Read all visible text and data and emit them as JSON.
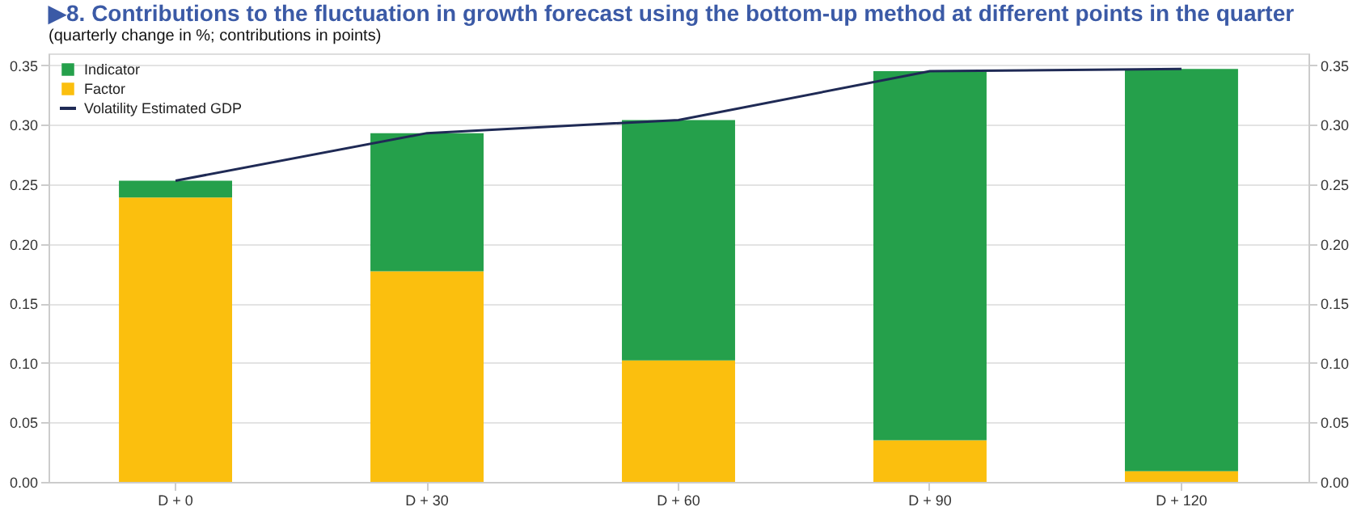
{
  "chart_data": {
    "type": "bar",
    "title": "▶8. Contributions to the fluctuation in growth forecast using the bottom-up method at different points in the quarter",
    "subtitle": "(quarterly change in %; contributions in points)",
    "categories": [
      "D + 0",
      "D + 30",
      "D + 60",
      "D + 90",
      "D + 120"
    ],
    "stacked": true,
    "series": [
      {
        "name": "Factor",
        "color": "#fbbf0e",
        "values": [
          0.239,
          0.177,
          0.102,
          0.035,
          0.009
        ]
      },
      {
        "name": "Indicator",
        "color": "#25a04b",
        "values": [
          0.014,
          0.116,
          0.202,
          0.31,
          0.338
        ]
      },
      {
        "name": "Volatility Estimated GDP",
        "type": "line",
        "color": "#1f2a55",
        "values": [
          0.253,
          0.293,
          0.304,
          0.345,
          0.347
        ]
      }
    ],
    "ylim": [
      0,
      0.36
    ],
    "yticks": [
      {
        "value": 0,
        "label": "0.00"
      },
      0.05,
      {
        "value": 0.1,
        "label": "0.10"
      },
      0.15,
      {
        "value": 0.2,
        "label": "0.20"
      },
      0.25,
      {
        "value": 0.3,
        "label": "0.30"
      },
      0.35
    ],
    "y2lim": [
      0,
      0.36
    ],
    "y2ticks": [
      {
        "value": 0,
        "label": "0.00"
      },
      0.05,
      {
        "value": 0.1,
        "label": "0.10"
      },
      0.15,
      {
        "value": 0.2,
        "label": "0.20"
      },
      0.25,
      {
        "value": 0.3,
        "label": "0.30"
      },
      0.35
    ],
    "grid": "y",
    "legend": "top left"
  }
}
